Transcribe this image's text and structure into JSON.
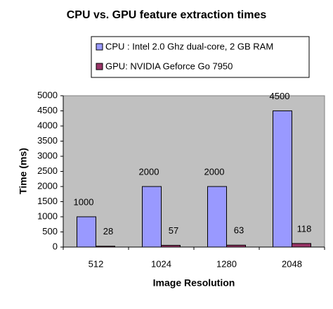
{
  "chart_data": {
    "type": "bar",
    "title": "CPU vs. GPU feature extraction times",
    "x_label": "Image Resolution",
    "y_label": "Time (ms)",
    "categories": [
      "512",
      "1024",
      "1280",
      "2048"
    ],
    "series": [
      {
        "name": "CPU : Intel 2.0 Ghz dual-core, 2 GB RAM",
        "color": "#9999ff",
        "values": [
          1000,
          2000,
          2000,
          4500
        ]
      },
      {
        "name": "GPU: NVIDIA Geforce Go 7950",
        "color": "#993366",
        "values": [
          28,
          57,
          63,
          118
        ]
      }
    ],
    "ylim": [
      0,
      5000
    ],
    "yticks": [
      0,
      500,
      1000,
      1500,
      2000,
      2500,
      3000,
      3500,
      4000,
      4500,
      5000
    ],
    "grid": false,
    "legend": "top",
    "plot_background": "#c0c0c0"
  }
}
